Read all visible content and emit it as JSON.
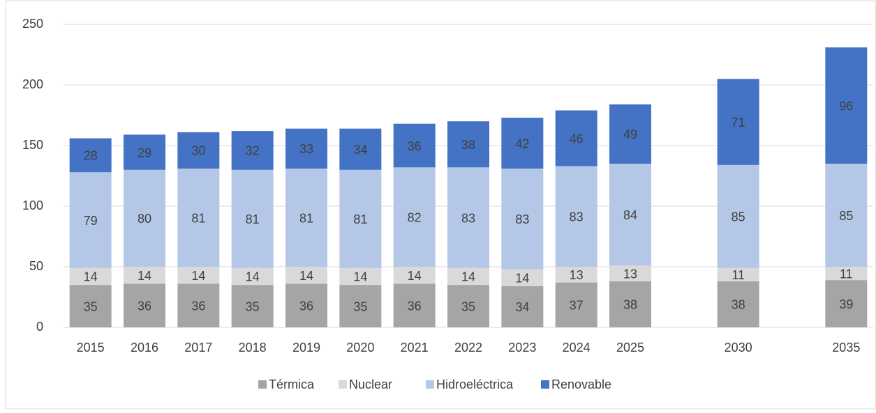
{
  "chart_data": {
    "type": "stacked_bar",
    "categories": [
      "2015",
      "2016",
      "2017",
      "2018",
      "2019",
      "2020",
      "2021",
      "2022",
      "2023",
      "2024",
      "2025",
      null,
      "2030",
      null,
      "2035"
    ],
    "series": [
      {
        "name": "Térmica",
        "color": "#a5a5a5",
        "values": [
          35,
          36,
          36,
          35,
          36,
          35,
          36,
          35,
          34,
          37,
          38,
          null,
          38,
          null,
          39
        ]
      },
      {
        "name": "Nuclear",
        "color": "#d9d9d9",
        "values": [
          14,
          14,
          14,
          14,
          14,
          14,
          14,
          14,
          14,
          13,
          13,
          null,
          11,
          null,
          11
        ]
      },
      {
        "name": "Hidroeléctrica",
        "color": "#b4c7e7",
        "values": [
          79,
          80,
          81,
          81,
          81,
          81,
          82,
          83,
          83,
          83,
          84,
          null,
          85,
          null,
          85
        ]
      },
      {
        "name": "Renovable",
        "color": "#4472c4",
        "values": [
          28,
          29,
          30,
          32,
          33,
          34,
          36,
          38,
          42,
          46,
          49,
          null,
          71,
          null,
          96
        ]
      }
    ],
    "ylim": [
      0,
      250
    ],
    "yticks": [
      0,
      50,
      100,
      150,
      200,
      250
    ],
    "grid": true,
    "legend": "bottom"
  }
}
